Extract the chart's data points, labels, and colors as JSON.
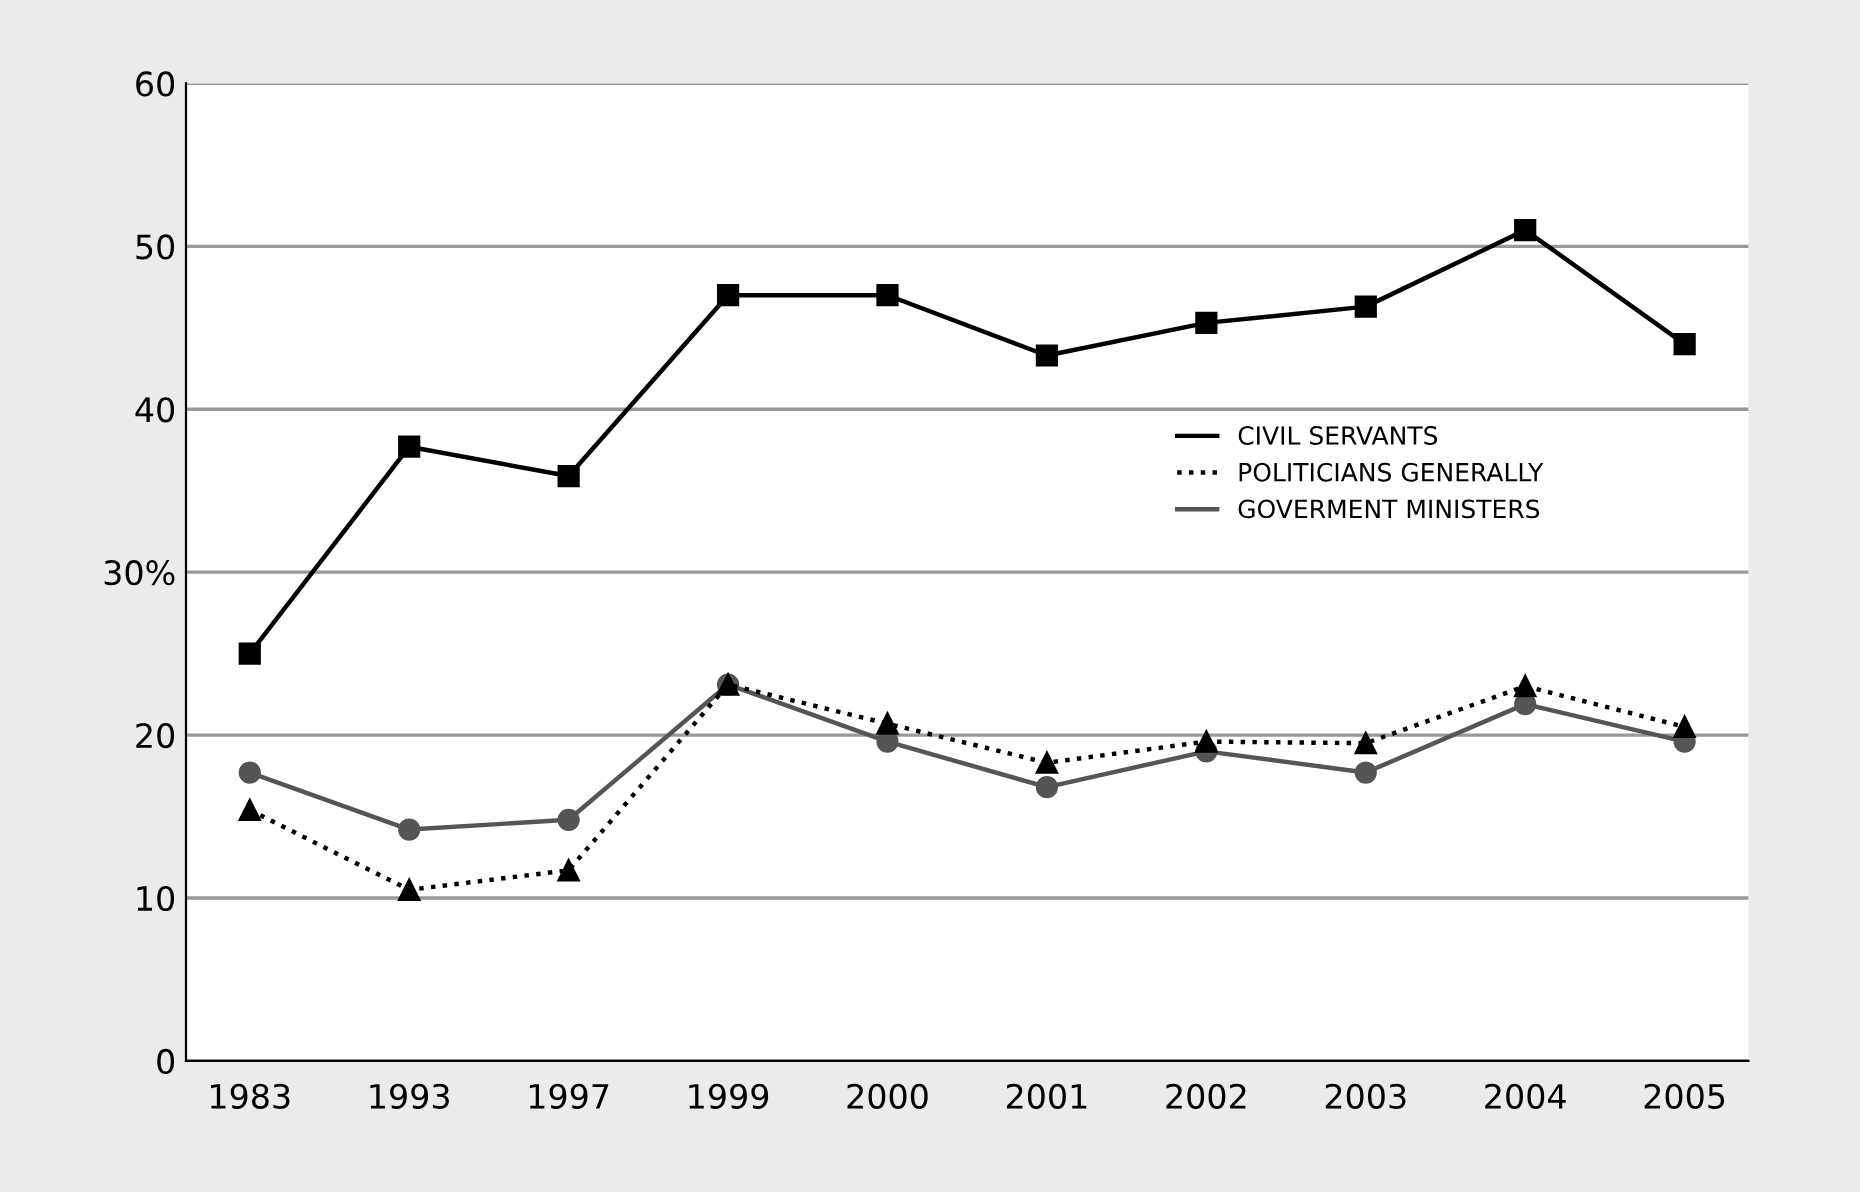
{
  "chart_data": {
    "type": "line",
    "categories": [
      "1983",
      "1993",
      "1997",
      "1999",
      "2000",
      "2001",
      "2002",
      "2003",
      "2004",
      "2005"
    ],
    "series": [
      {
        "name": "CIVIL SERVANTS",
        "color": "#000000",
        "marker": "square",
        "line_style": "solid",
        "values": [
          25,
          37.7,
          35.9,
          47,
          47,
          43.3,
          45.3,
          46.3,
          51,
          44
        ]
      },
      {
        "name": "POLITICIANS GENERALLY",
        "color": "#000000",
        "marker": "triangle",
        "line_style": "dotted",
        "values": [
          15.4,
          10.5,
          11.7,
          23.1,
          20.7,
          18.3,
          19.6,
          19.5,
          23,
          20.5
        ]
      },
      {
        "name": "GOVERMENT MINISTERS",
        "color": "#555555",
        "marker": "circle",
        "line_style": "solid",
        "values": [
          17.7,
          14.2,
          14.8,
          23.1,
          19.6,
          16.8,
          19,
          17.7,
          21.9,
          19.6
        ]
      }
    ],
    "ylim": [
      0,
      60
    ],
    "yticks": [
      0,
      10,
      20,
      {
        "value": 30,
        "label": "30%"
      },
      40,
      50,
      60
    ],
    "grid": "y",
    "legend": "right"
  }
}
